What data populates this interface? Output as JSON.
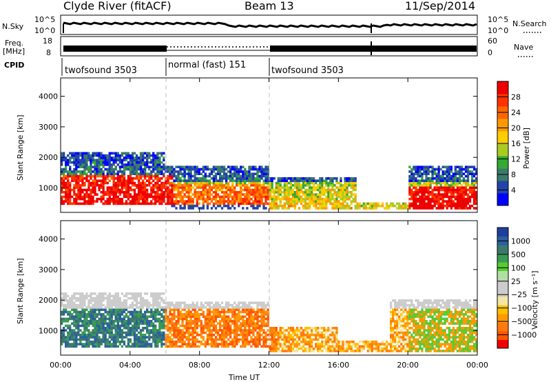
{
  "header": {
    "station": "Clyde River (fitACF)",
    "beam": "Beam 13",
    "date": "11/Sep/2014"
  },
  "status_panels": {
    "nsky_label": "N.Sky",
    "nsearch_label": "N.Search",
    "noise_ticks": [
      "10^5",
      "10^0"
    ],
    "freq_label_1": "Freq.",
    "freq_label_2": "[MHz]",
    "freq_ticks": [
      "18",
      "8"
    ],
    "nave_label": "Nave",
    "nave_ticks": [
      "60",
      "0"
    ],
    "cpid_label": "CPID",
    "cpid_segments": [
      {
        "label": "twofsound 3503",
        "start_h": 0,
        "end_h": 6
      },
      {
        "label": "normal (fast) 151",
        "start_h": 6,
        "end_h": 12
      },
      {
        "label": "twofsound 3503",
        "start_h": 12,
        "end_h": 24
      }
    ]
  },
  "chart_data": [
    {
      "type": "heatmap",
      "name": "power",
      "ylabel": "Slant Range [km]",
      "ylim": [
        200,
        4600
      ],
      "yticks": [
        1000,
        2000,
        3000,
        4000
      ],
      "xlim": [
        0,
        24
      ],
      "colorbar_label": "Power [dB]",
      "colorbar_ticks": [
        "28",
        "24",
        "20",
        "16",
        "12",
        "8",
        "4"
      ],
      "colorbar_colors": [
        "#0000ff",
        "#2244aa",
        "#3a7a6a",
        "#33aa33",
        "#aacc22",
        "#ffcc00",
        "#ff9900",
        "#ff6600",
        "#ff3300",
        "#ee0000"
      ]
    },
    {
      "type": "heatmap",
      "name": "velocity",
      "ylabel": "Slant Range [km]",
      "ylim": [
        200,
        4600
      ],
      "yticks": [
        1000,
        2000,
        3000,
        4000
      ],
      "xlim": [
        0,
        24
      ],
      "xticks": [
        "00:00",
        "04:00",
        "08:00",
        "12:00",
        "16:00",
        "20:00",
        "00:00"
      ],
      "xlabel": "Time UT",
      "colorbar_label": "Velocity [m s⁻¹]",
      "colorbar_ticks": [
        "1000",
        "500",
        "100",
        "25",
        "−25",
        "−100",
        "−500",
        "−1000"
      ],
      "colorbar_colors": [
        "#ee0000",
        "#ff5500",
        "#ff7a10",
        "#ff9900",
        "#ffc000",
        "#f2e6a0",
        "#cccccc",
        "#cccccc",
        "#b0e0a0",
        "#55cc33",
        "#3a9a55",
        "#3a7a6a",
        "#2b5fa0",
        "#1f3f9f"
      ]
    }
  ]
}
